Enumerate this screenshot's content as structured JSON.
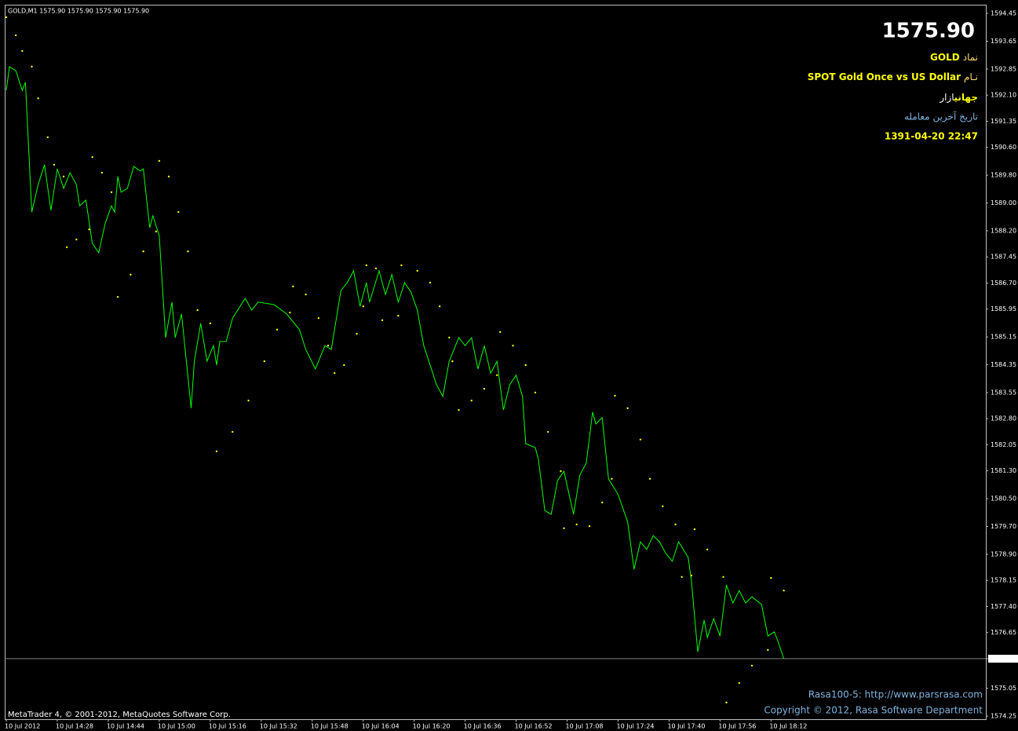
{
  "chart_data": {
    "type": "line",
    "title": "GOLD,M1  1575.90 1575.90 1575.90 1575.90",
    "ylim": [
      1574.16,
      1594.7
    ],
    "yticks": [
      1594.45,
      1593.65,
      1592.85,
      {
        "value": 1592.1,
        "label": "1592.10"
      },
      1591.35,
      {
        "value": 1590.6,
        "label": "1590.60"
      },
      {
        "value": 1589.8,
        "label": "1589.80"
      },
      {
        "value": 1589.0,
        "label": "1589.00"
      },
      {
        "value": 1588.2,
        "label": "1588.20"
      },
      1587.45,
      {
        "value": 1586.7,
        "label": "1586.70"
      },
      1585.95,
      1585.15,
      1584.35,
      1583.55,
      {
        "value": 1582.8,
        "label": "1582.80"
      },
      1582.05,
      {
        "value": 1581.3,
        "label": "1581.30"
      },
      {
        "value": 1580.5,
        "label": "1580.50"
      },
      {
        "value": 1579.7,
        "label": "1579.70"
      },
      {
        "value": 1578.9,
        "label": "1578.90"
      },
      1578.15,
      {
        "value": 1577.4,
        "label": "1577.40"
      },
      1576.65,
      {
        "value": 1575.9,
        "label": "1575.90"
      },
      1575.05,
      1574.25
    ],
    "xlim": [
      -0.5,
      307.4
    ],
    "xticks": [
      {
        "value": 0,
        "label": "10 Jul 2012"
      },
      {
        "value": 16,
        "label": "10 Jul 14:28"
      },
      {
        "value": 32,
        "label": "10 Jul 14:44"
      },
      {
        "value": 48,
        "label": "10 Jul 15:00"
      },
      {
        "value": 64,
        "label": "10 Jul 15:16"
      },
      {
        "value": 80,
        "label": "10 Jul 15:32"
      },
      {
        "value": 96,
        "label": "10 Jul 15:48"
      },
      {
        "value": 112,
        "label": "10 Jul 16:04"
      },
      {
        "value": 128,
        "label": "10 Jul 16:20"
      },
      {
        "value": 144,
        "label": "10 Jul 16:36"
      },
      {
        "value": 160,
        "label": "10 Jul 16:52"
      },
      {
        "value": 176,
        "label": "10 Jul 17:08"
      },
      {
        "value": 192,
        "label": "10 Jul 17:24"
      },
      {
        "value": 208,
        "label": "10 Jul 17:40"
      },
      {
        "value": 224,
        "label": "10 Jul 17:56"
      },
      {
        "value": 240,
        "label": "10 Jul 18:12"
      }
    ],
    "price_line": 1575.9,
    "series": [
      {
        "color": "#00ff00",
        "style": "line",
        "x": [
          0,
          1,
          3,
          5,
          6,
          8,
          10,
          12,
          14,
          16,
          18,
          20,
          22,
          23,
          25,
          27,
          29,
          31,
          33,
          34,
          35,
          36,
          38,
          40,
          42,
          43,
          45,
          46,
          48,
          50,
          52,
          53,
          55,
          58,
          59,
          61,
          63,
          65,
          66,
          67,
          69,
          71,
          75,
          77,
          79,
          84,
          88,
          92,
          94,
          97,
          100,
          102,
          105,
          107,
          109,
          111,
          113,
          114,
          117,
          119,
          121,
          123,
          125,
          127,
          129,
          131,
          135,
          137,
          139,
          142,
          144,
          146,
          148,
          150,
          152,
          154,
          156,
          158,
          160,
          162,
          163,
          166,
          167,
          169,
          171,
          173,
          175,
          178,
          180,
          182,
          184,
          185,
          187,
          189,
          192,
          195,
          197,
          199,
          201,
          203,
          205,
          207,
          209,
          211,
          214,
          215,
          217,
          219,
          220,
          222,
          224,
          226,
          228,
          230,
          232,
          234,
          237,
          239,
          241,
          242,
          244
        ],
        "values": [
          1592.24,
          1592.92,
          1592.8,
          1592.24,
          1592.47,
          1588.74,
          1589.53,
          1590.1,
          1588.79,
          1589.98,
          1589.42,
          1589.87,
          1589.53,
          1588.92,
          1589.08,
          1587.84,
          1587.57,
          1588.4,
          1588.92,
          1588.74,
          1589.76,
          1589.31,
          1589.42,
          1590.05,
          1589.92,
          1589.98,
          1588.29,
          1588.63,
          1588.06,
          1585.13,
          1586.15,
          1585.13,
          1585.81,
          1583.1,
          1584.45,
          1585.54,
          1584.45,
          1584.9,
          1584.34,
          1585.02,
          1585.02,
          1585.69,
          1586.26,
          1585.92,
          1586.15,
          1586.08,
          1585.81,
          1585.36,
          1584.79,
          1584.23,
          1584.9,
          1584.79,
          1586.48,
          1586.71,
          1587.05,
          1586.03,
          1586.71,
          1586.15,
          1587.05,
          1586.37,
          1586.94,
          1586.15,
          1586.71,
          1586.44,
          1585.92,
          1584.9,
          1583.78,
          1583.44,
          1584.45,
          1585.13,
          1584.9,
          1585.13,
          1584.23,
          1584.9,
          1584.11,
          1584.45,
          1583.05,
          1583.78,
          1584.05,
          1583.44,
          1582.08,
          1581.97,
          1581.63,
          1580.16,
          1580.05,
          1581.02,
          1581.29,
          1580.05,
          1581.18,
          1581.52,
          1582.99,
          1582.65,
          1582.83,
          1581.07,
          1580.62,
          1579.83,
          1578.47,
          1579.26,
          1579.04,
          1579.44,
          1579.26,
          1578.92,
          1578.7,
          1579.26,
          1578.81,
          1578.13,
          1576.1,
          1577.01,
          1576.51,
          1577.05,
          1576.55,
          1578.02,
          1577.5,
          1577.86,
          1577.5,
          1577.68,
          1577.46,
          1576.55,
          1576.67,
          1576.44,
          1575.9
        ]
      },
      {
        "color": "#ffff00",
        "style": "dots",
        "x": [
          0,
          3,
          5,
          8,
          10,
          13,
          15,
          18,
          19,
          22,
          26,
          27,
          30,
          33,
          35,
          39,
          43,
          47,
          48,
          51,
          54,
          57,
          60,
          64,
          66,
          71,
          76,
          81,
          85,
          89,
          90,
          94,
          98,
          101,
          103,
          106,
          110,
          112,
          113,
          116,
          118,
          123,
          124,
          129,
          133,
          136,
          139,
          140,
          142,
          146,
          150,
          154,
          155,
          159,
          163,
          166,
          170,
          174,
          175,
          179,
          183,
          187,
          190,
          191,
          195,
          199,
          202,
          206,
          210,
          212,
          215,
          216,
          220,
          225,
          226,
          230,
          234,
          239,
          240,
          244
        ],
        "values": [
          1594.34,
          1593.82,
          1593.37,
          1592.92,
          1592.01,
          1590.89,
          1590.1,
          1589.76,
          1587.73,
          1587.95,
          1588.24,
          1590.32,
          1589.87,
          1589.31,
          1586.3,
          1586.94,
          1587.61,
          1588.18,
          1590.21,
          1589.76,
          1588.74,
          1587.61,
          1585.92,
          1585.54,
          1581.86,
          1582.42,
          1583.32,
          1584.45,
          1585.36,
          1585.85,
          1586.6,
          1586.37,
          1585.69,
          1584.9,
          1584.11,
          1584.34,
          1585.24,
          1586.03,
          1587.21,
          1587.12,
          1585.63,
          1585.76,
          1587.21,
          1587.05,
          1586.71,
          1586.03,
          1585.13,
          1584.45,
          1583.05,
          1583.32,
          1583.66,
          1584.05,
          1585.29,
          1584.9,
          1584.34,
          1583.55,
          1582.42,
          1581.29,
          1579.65,
          1579.76,
          1579.71,
          1580.39,
          1581.07,
          1583.46,
          1583.1,
          1582.2,
          1581.07,
          1580.28,
          1579.76,
          1578.25,
          1578.29,
          1579.62,
          1579.04,
          1578.25,
          1574.64,
          1575.2,
          1575.7,
          1576.15,
          1578.22,
          1577.86
        ]
      }
    ]
  },
  "info_panel": {
    "price": "1575.90",
    "symbol_label": "نماد",
    "symbol": "GOLD",
    "name_label": "نـام",
    "name": "SPOT Gold Once vs US Dollar",
    "market_label": "بازار",
    "market": "جهاني",
    "last_trade_label": "تاريخ آخرين معامله",
    "last_trade": "1391-04-20  22:47"
  },
  "footer": {
    "platform": "MetaTrader 4, © 2001-2012, MetaQuotes Software Corp.",
    "site": "Rasa100-5: http://www.parsrasa.com",
    "copyright": "Copyright © 2012, Rasa Software Department"
  }
}
